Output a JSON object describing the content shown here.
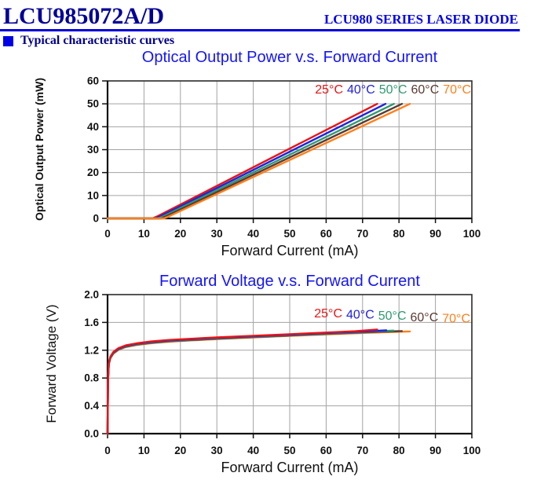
{
  "page": {
    "title": "LCU985072A/D",
    "series_header": "LCU980 SERIES LASER DIODE",
    "section_title": "Typical characteristic curves"
  },
  "colors": {
    "header_navy": "#000099",
    "header_blue": "#0000ee",
    "rule_blue": "#0000dd",
    "chart_title_blue": "#1414ff",
    "grid_gray": "#a3a3a3"
  },
  "chart_data": [
    {
      "type": "line",
      "title": "Optical Output Power v.s. Forward Current",
      "xlabel": "Forward Current (mA)",
      "ylabel": "Optical Output Power (mW)",
      "xlim": [
        0,
        100
      ],
      "ylim": [
        0,
        60
      ],
      "xticks": [
        "0",
        "10",
        "20",
        "30",
        "40",
        "50",
        "60",
        "70",
        "80",
        "90",
        "100"
      ],
      "yticks": [
        "0",
        "10",
        "20",
        "30",
        "40",
        "50",
        "60"
      ],
      "grid": true,
      "legend_position": "inside-top-right",
      "draw_order": [
        0,
        1,
        2,
        3,
        4
      ],
      "series": [
        {
          "name": "25°C",
          "color": "#e81414",
          "points": [
            [
              0,
              0
            ],
            [
              12.3,
              0
            ],
            [
              13.8,
              1
            ],
            [
              74,
              50
            ]
          ]
        },
        {
          "name": "40°C",
          "color": "#2222dd",
          "points": [
            [
              0,
              0
            ],
            [
              13.1,
              0
            ],
            [
              14.6,
              1
            ],
            [
              76.3,
              50
            ]
          ]
        },
        {
          "name": "50°C",
          "color": "#2e9970",
          "points": [
            [
              0,
              0
            ],
            [
              13.9,
              0
            ],
            [
              15.4,
              1
            ],
            [
              78.6,
              50
            ]
          ]
        },
        {
          "name": "60°C",
          "color": "#5a3a33",
          "points": [
            [
              0,
              0
            ],
            [
              14.7,
              0
            ],
            [
              16.2,
              1
            ],
            [
              80.8,
              50
            ]
          ]
        },
        {
          "name": "70°C",
          "color": "#ff7f1a",
          "points": [
            [
              0,
              0
            ],
            [
              15.5,
              0
            ],
            [
              17.0,
              1
            ],
            [
              83,
              50
            ]
          ]
        }
      ]
    },
    {
      "type": "line",
      "title": "Forward Voltage v.s. Forward Current",
      "xlabel": "Forward Current (mA)",
      "ylabel": "Forward Voltage (V)",
      "xlim": [
        0,
        100
      ],
      "ylim": [
        0,
        2.0
      ],
      "xticks": [
        "0",
        "10",
        "20",
        "30",
        "40",
        "50",
        "60",
        "70",
        "80",
        "90",
        "100"
      ],
      "yticks": [
        "0.0",
        "0.4",
        "0.8",
        "1.2",
        "1.6",
        "2.0"
      ],
      "grid": true,
      "legend_position": "inside-top-right",
      "draw_order": [
        4,
        3,
        2,
        1,
        0
      ],
      "series": [
        {
          "name": "25°C",
          "color": "#e81414",
          "points": [
            [
              0,
              0
            ],
            [
              0.12,
              0.78
            ],
            [
              0.35,
              1.02
            ],
            [
              0.8,
              1.11
            ],
            [
              1.6,
              1.175
            ],
            [
              3,
              1.23
            ],
            [
              5,
              1.27
            ],
            [
              8,
              1.3
            ],
            [
              12,
              1.326
            ],
            [
              17,
              1.348
            ],
            [
              22,
              1.363
            ],
            [
              30,
              1.384
            ],
            [
              40,
              1.408
            ],
            [
              50,
              1.431
            ],
            [
              60,
              1.454
            ],
            [
              68,
              1.473
            ],
            [
              74,
              1.497
            ]
          ]
        },
        {
          "name": "40°C",
          "color": "#2222dd",
          "points": [
            [
              0,
              0
            ],
            [
              0.12,
              0.77
            ],
            [
              0.35,
              1.01
            ],
            [
              0.8,
              1.103
            ],
            [
              1.6,
              1.168
            ],
            [
              3,
              1.223
            ],
            [
              5,
              1.263
            ],
            [
              8,
              1.293
            ],
            [
              12,
              1.319
            ],
            [
              17,
              1.341
            ],
            [
              22,
              1.356
            ],
            [
              30,
              1.377
            ],
            [
              40,
              1.401
            ],
            [
              50,
              1.424
            ],
            [
              60,
              1.447
            ],
            [
              70,
              1.469
            ],
            [
              76.5,
              1.487
            ]
          ]
        },
        {
          "name": "50°C",
          "color": "#2e9970",
          "points": [
            [
              0,
              0
            ],
            [
              0.12,
              0.765
            ],
            [
              0.35,
              1.005
            ],
            [
              0.8,
              1.097
            ],
            [
              1.6,
              1.162
            ],
            [
              3,
              1.217
            ],
            [
              5,
              1.257
            ],
            [
              8,
              1.287
            ],
            [
              12,
              1.313
            ],
            [
              17,
              1.335
            ],
            [
              22,
              1.35
            ],
            [
              30,
              1.371
            ],
            [
              40,
              1.395
            ],
            [
              50,
              1.418
            ],
            [
              60,
              1.441
            ],
            [
              70,
              1.463
            ],
            [
              78.5,
              1.482
            ]
          ]
        },
        {
          "name": "60°C",
          "color": "#5a3a33",
          "points": [
            [
              0,
              0
            ],
            [
              0.12,
              0.76
            ],
            [
              0.35,
              1.0
            ],
            [
              0.8,
              1.091
            ],
            [
              1.6,
              1.156
            ],
            [
              3,
              1.211
            ],
            [
              5,
              1.251
            ],
            [
              8,
              1.281
            ],
            [
              12,
              1.307
            ],
            [
              17,
              1.329
            ],
            [
              22,
              1.344
            ],
            [
              30,
              1.365
            ],
            [
              40,
              1.389
            ],
            [
              50,
              1.412
            ],
            [
              60,
              1.435
            ],
            [
              70,
              1.457
            ],
            [
              80.8,
              1.476
            ]
          ]
        },
        {
          "name": "70°C",
          "color": "#ff7f1a",
          "points": [
            [
              0,
              0
            ],
            [
              0.12,
              0.755
            ],
            [
              0.35,
              0.995
            ],
            [
              0.8,
              1.085
            ],
            [
              1.6,
              1.15
            ],
            [
              3,
              1.205
            ],
            [
              5,
              1.245
            ],
            [
              8,
              1.275
            ],
            [
              12,
              1.301
            ],
            [
              17,
              1.323
            ],
            [
              22,
              1.338
            ],
            [
              30,
              1.359
            ],
            [
              40,
              1.383
            ],
            [
              50,
              1.406
            ],
            [
              62,
              1.432
            ],
            [
              72,
              1.452
            ],
            [
              83,
              1.47
            ]
          ]
        }
      ]
    }
  ]
}
